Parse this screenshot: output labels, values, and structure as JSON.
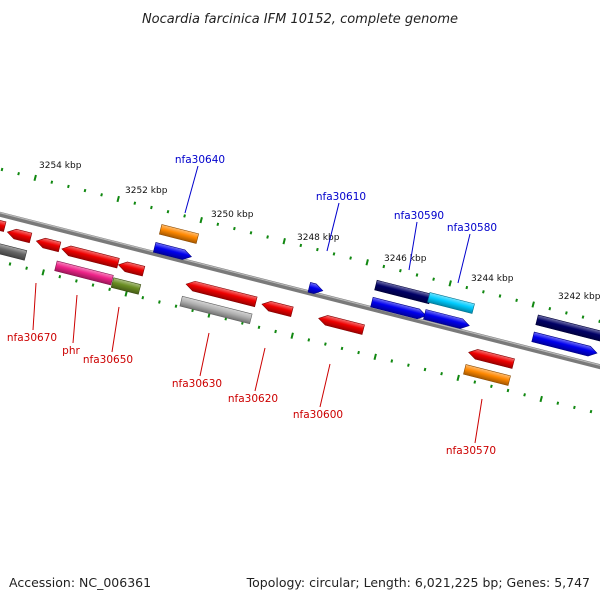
{
  "title": "Nocardia farcinica IFM 10152, complete genome",
  "footer": {
    "accession": "Accession: NC_006361",
    "summary": "Topology: circular; Length: 6,021,225 bp; Genes: 5,747"
  },
  "colors": {
    "strand_forward": "#0000cc",
    "strand_reverse": "#cc0000",
    "backbone": "#7a7a7a",
    "tick": "#118811"
  },
  "scale_labels": [
    "3254 kbp",
    "3252 kbp",
    "3250 kbp",
    "3248 kbp",
    "3246 kbp",
    "3244 kbp",
    "3242 kbp"
  ],
  "gene_labels_forward": [
    "nfa30640",
    "nfa30610",
    "nfa30590",
    "nfa30580"
  ],
  "gene_labels_reverse": [
    "nfa30670",
    "phr",
    "nfa30650",
    "nfa30630",
    "nfa30620",
    "nfa30600",
    "nfa30570"
  ],
  "features": [
    {
      "name": "feature-red-1",
      "color": "#ee0000"
    },
    {
      "name": "feature-red-2",
      "color": "#ee0000"
    },
    {
      "name": "feature-gray-1",
      "color": "#666666"
    },
    {
      "name": "feature-red-3",
      "color": "#ee0000"
    },
    {
      "name": "feature-red-phr",
      "color": "#ee0000"
    },
    {
      "name": "feature-pink-phr",
      "color": "#ee2288"
    },
    {
      "name": "feature-red-4",
      "color": "#ee0000"
    },
    {
      "name": "feature-olive-nfa30650",
      "color": "#6b8e23"
    },
    {
      "name": "feature-orange-nfa30640",
      "color": "#ff8800"
    },
    {
      "name": "feature-blue-nfa30640",
      "color": "#0000ee"
    },
    {
      "name": "feature-red-nfa30630",
      "color": "#ee0000"
    },
    {
      "name": "feature-silver-nfa30630",
      "color": "#b0b0b0"
    },
    {
      "name": "feature-red-nfa30620",
      "color": "#ee0000"
    },
    {
      "name": "feature-blue-nfa30610",
      "color": "#0000ee"
    },
    {
      "name": "feature-red-nfa30600",
      "color": "#ee0000"
    },
    {
      "name": "feature-navy-nfa30590",
      "color": "#000066"
    },
    {
      "name": "feature-blue-nfa30590",
      "color": "#0000ee"
    },
    {
      "name": "feature-cyan-nfa30580",
      "color": "#00ccff"
    },
    {
      "name": "feature-blue-nfa30580",
      "color": "#0000ee"
    },
    {
      "name": "feature-red-nfa30570",
      "color": "#ee0000"
    },
    {
      "name": "feature-orange-nfa30570",
      "color": "#ff8800"
    },
    {
      "name": "feature-navy-right",
      "color": "#000066"
    },
    {
      "name": "feature-blue-right",
      "color": "#0000ee"
    }
  ]
}
